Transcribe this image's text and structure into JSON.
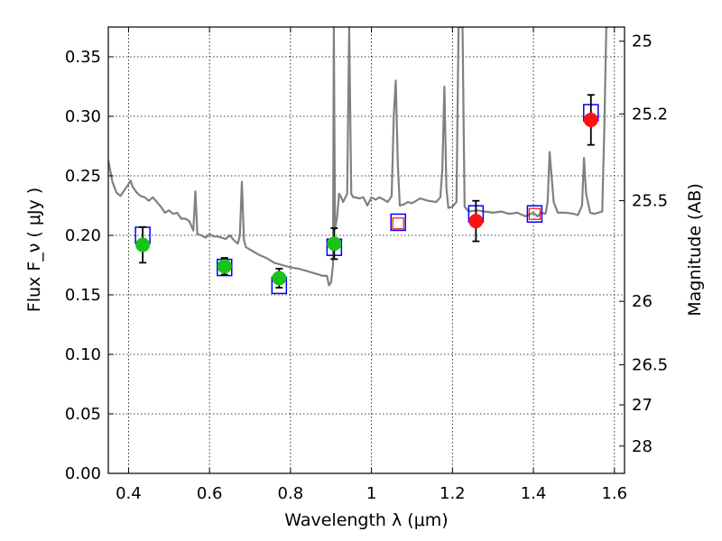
{
  "chart_data": {
    "type": "scatter",
    "xlabel": "Wavelength  λ (μm)",
    "ylabel": "Flux  F_ν  ( μJy )",
    "y2label": "Magnitude (AB)",
    "xlim": [
      0.35,
      1.625
    ],
    "ylim": [
      0.0,
      0.375
    ],
    "grid": true,
    "colors": {
      "model": "#808080",
      "measured_optical": "#19c419",
      "measured_nir": "#ff1111",
      "model_box": "#0000ff",
      "upper_box": "#ff1111",
      "errorbar": "#000000"
    },
    "x_ticks": [
      {
        "value": 0.4,
        "label": "0.4"
      },
      {
        "value": 0.6,
        "label": "0.6"
      },
      {
        "value": 0.8,
        "label": "0.8"
      },
      {
        "value": 1.0,
        "label": "1"
      },
      {
        "value": 1.2,
        "label": "1.2"
      },
      {
        "value": 1.4,
        "label": "1.4"
      },
      {
        "value": 1.6,
        "label": "1.6"
      }
    ],
    "y_ticks": [
      {
        "value": 0.0,
        "label": "0.00"
      },
      {
        "value": 0.05,
        "label": "0.05"
      },
      {
        "value": 0.1,
        "label": "0.10"
      },
      {
        "value": 0.15,
        "label": "0.15"
      },
      {
        "value": 0.2,
        "label": "0.20"
      },
      {
        "value": 0.25,
        "label": "0.25"
      },
      {
        "value": 0.3,
        "label": "0.30"
      },
      {
        "value": 0.35,
        "label": "0.35"
      }
    ],
    "y2_ticks": [
      {
        "value": 25,
        "label": "25"
      },
      {
        "value": 25.2,
        "label": "25.2"
      },
      {
        "value": 25.5,
        "label": "25.5"
      },
      {
        "value": 26,
        "label": "26"
      },
      {
        "value": 26.5,
        "label": "26.5"
      },
      {
        "value": 27,
        "label": "27"
      },
      {
        "value": 28,
        "label": "28"
      }
    ],
    "series": [
      {
        "kind": "line",
        "role": "model",
        "x": [
          0.35,
          0.36,
          0.37,
          0.38,
          0.39,
          0.4,
          0.405,
          0.41,
          0.42,
          0.43,
          0.44,
          0.45,
          0.46,
          0.47,
          0.48,
          0.49,
          0.5,
          0.51,
          0.52,
          0.53,
          0.54,
          0.55,
          0.56,
          0.565,
          0.57,
          0.58,
          0.59,
          0.6,
          0.61,
          0.62,
          0.63,
          0.64,
          0.65,
          0.66,
          0.67,
          0.675,
          0.68,
          0.685,
          0.69,
          0.7,
          0.72,
          0.74,
          0.76,
          0.78,
          0.8,
          0.82,
          0.84,
          0.86,
          0.88,
          0.89,
          0.895,
          0.9,
          0.905,
          0.907,
          0.91,
          0.915,
          0.92,
          0.925,
          0.93,
          0.94,
          0.945,
          0.95,
          0.955,
          0.96,
          0.97,
          0.98,
          0.99,
          1.0,
          1.01,
          1.02,
          1.04,
          1.05,
          1.055,
          1.06,
          1.065,
          1.07,
          1.08,
          1.09,
          1.1,
          1.12,
          1.14,
          1.16,
          1.17,
          1.175,
          1.18,
          1.185,
          1.19,
          1.2,
          1.21,
          1.215,
          1.22,
          1.225,
          1.23,
          1.24,
          1.26,
          1.28,
          1.3,
          1.32,
          1.34,
          1.36,
          1.38,
          1.4,
          1.41,
          1.42,
          1.43,
          1.435,
          1.44,
          1.45,
          1.46,
          1.48,
          1.5,
          1.51,
          1.52,
          1.525,
          1.53,
          1.54,
          1.55,
          1.56,
          1.57,
          1.575,
          1.58,
          1.585
        ],
        "y": [
          0.263,
          0.245,
          0.236,
          0.233,
          0.238,
          0.243,
          0.246,
          0.241,
          0.236,
          0.233,
          0.232,
          0.229,
          0.232,
          0.228,
          0.224,
          0.219,
          0.221,
          0.218,
          0.219,
          0.214,
          0.214,
          0.212,
          0.204,
          0.237,
          0.201,
          0.2,
          0.198,
          0.201,
          0.199,
          0.199,
          0.198,
          0.197,
          0.2,
          0.196,
          0.193,
          0.2,
          0.245,
          0.196,
          0.19,
          0.188,
          0.184,
          0.181,
          0.177,
          0.175,
          0.173,
          0.172,
          0.17,
          0.168,
          0.166,
          0.166,
          0.158,
          0.16,
          0.175,
          0.375,
          0.205,
          0.215,
          0.235,
          0.232,
          0.228,
          0.235,
          0.375,
          0.235,
          0.232,
          0.232,
          0.231,
          0.232,
          0.225,
          0.232,
          0.23,
          0.232,
          0.228,
          0.233,
          0.3,
          0.33,
          0.26,
          0.225,
          0.226,
          0.228,
          0.227,
          0.231,
          0.229,
          0.228,
          0.232,
          0.255,
          0.325,
          0.24,
          0.223,
          0.224,
          0.228,
          0.375,
          0.375,
          0.375,
          0.224,
          0.22,
          0.221,
          0.22,
          0.219,
          0.22,
          0.218,
          0.219,
          0.216,
          0.219,
          0.216,
          0.219,
          0.218,
          0.228,
          0.27,
          0.228,
          0.219,
          0.219,
          0.218,
          0.217,
          0.225,
          0.265,
          0.235,
          0.219,
          0.218,
          0.219,
          0.22,
          0.29,
          0.375,
          0.375
        ]
      },
      {
        "kind": "boxes",
        "role": "model_photometry",
        "x": [
          0.435,
          0.637,
          0.772,
          0.908,
          1.066,
          1.258,
          1.403,
          1.542
        ],
        "y": [
          0.2,
          0.173,
          0.158,
          0.19,
          0.211,
          0.218,
          0.218,
          0.303
        ]
      },
      {
        "kind": "boxes",
        "role": "upper_limit",
        "x": [
          1.066,
          1.403
        ],
        "y": [
          0.21,
          0.218
        ]
      },
      {
        "kind": "points",
        "role": "measured_optical",
        "x": [
          0.435,
          0.637,
          0.772,
          0.908
        ],
        "y": [
          0.192,
          0.174,
          0.164,
          0.193
        ],
        "err": [
          0.015,
          0.007,
          0.008,
          0.013
        ]
      },
      {
        "kind": "points",
        "role": "measured_nir",
        "x": [
          1.258,
          1.542
        ],
        "y": [
          0.212,
          0.297
        ],
        "err": [
          0.017,
          0.021
        ]
      }
    ]
  }
}
